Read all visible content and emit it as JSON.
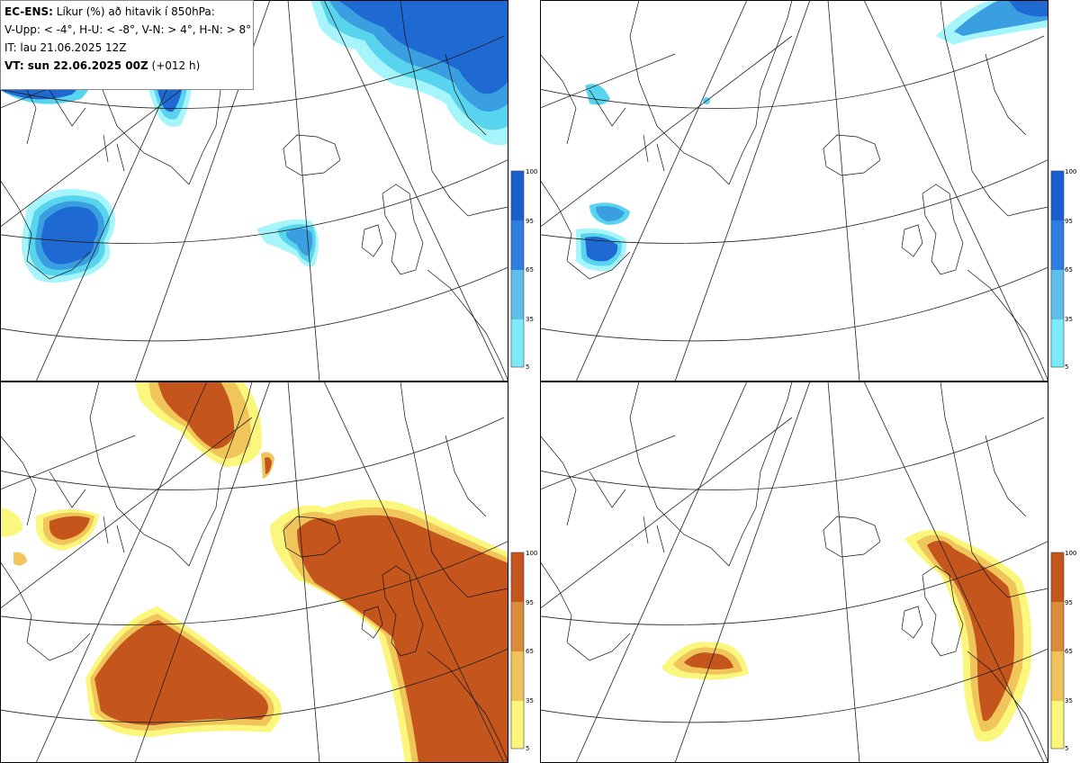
{
  "info": {
    "model": "EC-ENS:",
    "description": "Líkur (%) að hitavik í 850hPa:",
    "thresholds": "V-Upp: < -4°, H-U: < -8°, V-N: > 4°, H-N: > 8°",
    "init_time": "IT: lau 21.06.2025 12Z",
    "valid_time": "VT: sun 22.06.2025 00Z",
    "lead": "(+012 h)"
  },
  "colorbars": [
    {
      "panel": "top",
      "ticks": [
        "100",
        "95",
        "65",
        "35",
        "5"
      ],
      "colors": [
        "#1a5fce",
        "#2f7de0",
        "#5fbdeb",
        "#7deafa",
        "#9ff6fc"
      ]
    },
    {
      "panel": "bottom",
      "ticks": [
        "100",
        "95",
        "65",
        "35",
        "5"
      ],
      "colors": [
        "#c4551d",
        "#db8c3a",
        "#efc35a",
        "#fbf57a",
        "#fdfd9a"
      ]
    }
  ],
  "palette": {
    "cold": [
      "#a6f5fa",
      "#59d4ef",
      "#3a9fe0",
      "#1f69d2"
    ],
    "warm": [
      "#fbf67c",
      "#f0c55a",
      "#d98a36",
      "#c4551d"
    ],
    "frame": "#000000",
    "grid": "#222222"
  }
}
